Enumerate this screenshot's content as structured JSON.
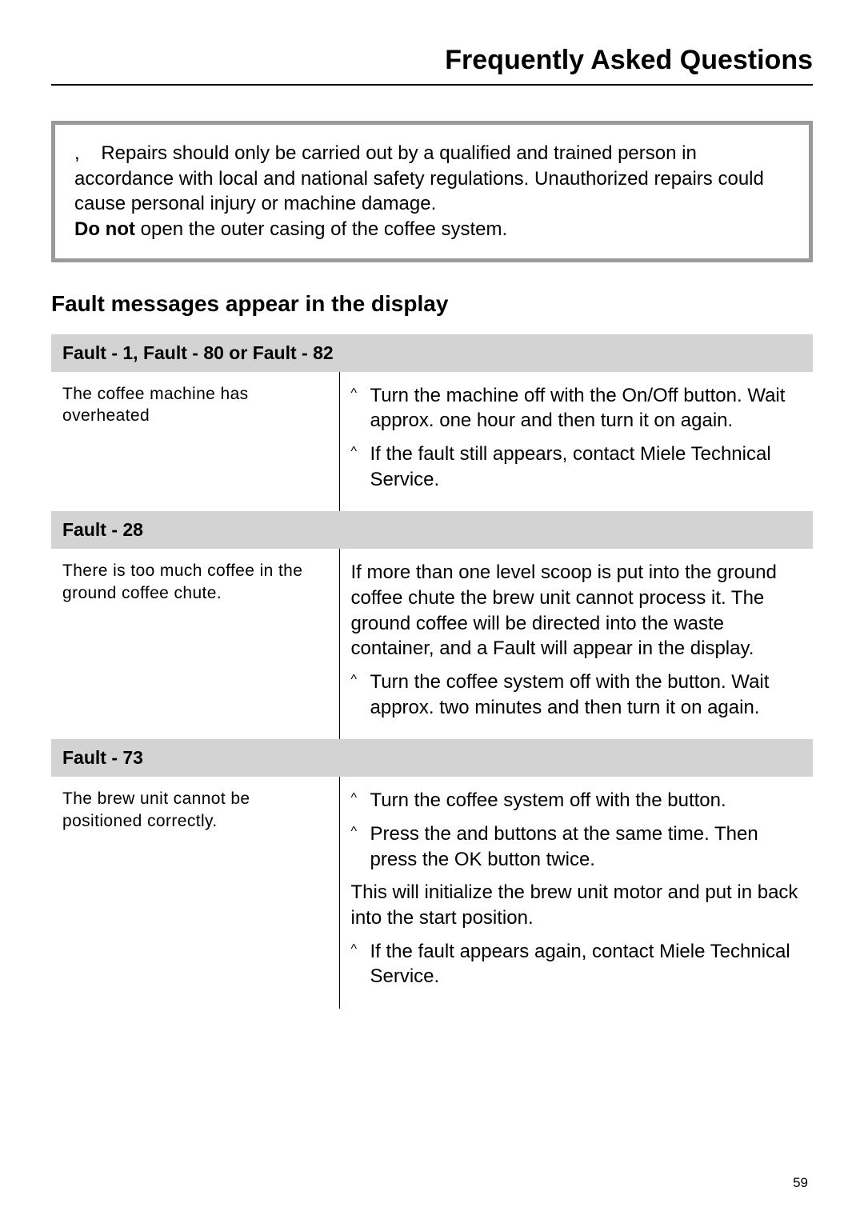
{
  "page": {
    "title": "Frequently Asked Questions",
    "number": "59"
  },
  "warning": {
    "lead_symbol": ",",
    "body_line1": "Repairs should only be carried out by a qualified and trained person in accordance with local and national safety regulations. Unauthorized repairs could cause personal injury or machine damage.",
    "bold": "Do not",
    "body_line2": " open the outer casing of the coffee system."
  },
  "section_heading": "Fault messages appear in the display",
  "faults": [
    {
      "header": "Fault - 1, Fault - 80 or Fault - 82",
      "cause": "The coffee machine has overheated",
      "remedies": [
        {
          "type": "step",
          "text": "Turn the machine off with the On/Off button. Wait approx. one hour and then turn it on again."
        },
        {
          "type": "step",
          "text": "If the fault still appears, contact Miele Technical Service."
        }
      ]
    },
    {
      "header": "Fault - 28",
      "cause": "There is too much coffee in the ground coffee chute.",
      "remedies": [
        {
          "type": "plain",
          "text": "If more than one level scoop is put into the ground coffee chute the brew unit cannot process it. The ground coffee will be directed into the waste container, and a Fault will appear in the display."
        },
        {
          "type": "step",
          "text": "Turn the coffee system off with the      button. Wait approx. two minutes and then turn it on again."
        }
      ]
    },
    {
      "header": "Fault - 73",
      "cause": "The brew unit cannot be positioned correctly.",
      "remedies": [
        {
          "type": "step",
          "text": "Turn the coffee system off with the      button."
        },
        {
          "type": "step",
          "text": "Press the     and     buttons at the same time. Then press the OK button twice."
        },
        {
          "type": "plain",
          "text": "This will initialize the brew unit motor and put in back into the start position."
        },
        {
          "type": "step",
          "text": "If the fault appears again, contact Miele Technical Service."
        }
      ]
    }
  ]
}
